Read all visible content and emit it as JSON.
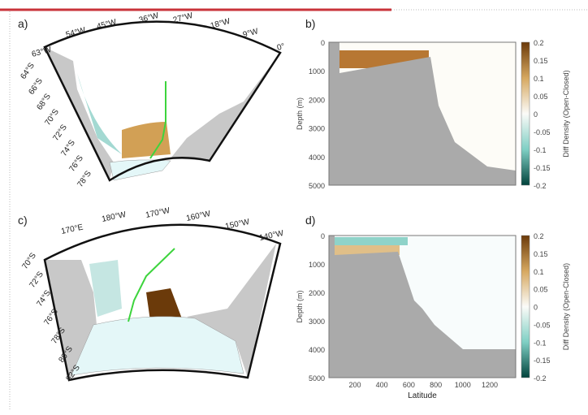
{
  "panels": [
    {
      "label": "a)",
      "lon_labels": [
        "63°W",
        "54°W",
        "45°W",
        "36°W",
        "27°W",
        "18°W",
        "9°W",
        "0°"
      ],
      "lat_labels": [
        "64°S",
        "66°S",
        "68°S",
        "70°S",
        "72°S",
        "74°S",
        "76°S",
        "78°S"
      ]
    },
    {
      "label": "b)",
      "ylabel": "Depth (m)",
      "yticks": [
        "0",
        "1000",
        "2000",
        "3000",
        "4000",
        "5000"
      ],
      "colorbar_label": "Diff Density (Open-Closed)",
      "colorbar_ticks": [
        "0.2",
        "0.15",
        "0.1",
        "0.05",
        "0",
        "-0.05",
        "-0.1",
        "-0.15",
        "-0.2"
      ]
    },
    {
      "label": "c)",
      "lon_labels": [
        "170°E",
        "180°W",
        "170°W",
        "160°W",
        "150°W",
        "140°W"
      ],
      "lat_labels": [
        "70°S",
        "72°S",
        "74°S",
        "76°S",
        "78°S",
        "80°S",
        "82°S"
      ]
    },
    {
      "label": "d)",
      "ylabel": "Depth (m)",
      "yticks": [
        "0",
        "1000",
        "2000",
        "3000",
        "4000",
        "5000"
      ],
      "xticks": [
        "200",
        "400",
        "600",
        "800",
        "1000",
        "1200"
      ],
      "xlabel": "Latitude",
      "colorbar_label": "Diff Density (Open-Closed)",
      "colorbar_ticks": [
        "0.2",
        "0.15",
        "0.1",
        "0.05",
        "0",
        "-0.05",
        "-0.1",
        "-0.15",
        "-0.2"
      ]
    }
  ]
}
